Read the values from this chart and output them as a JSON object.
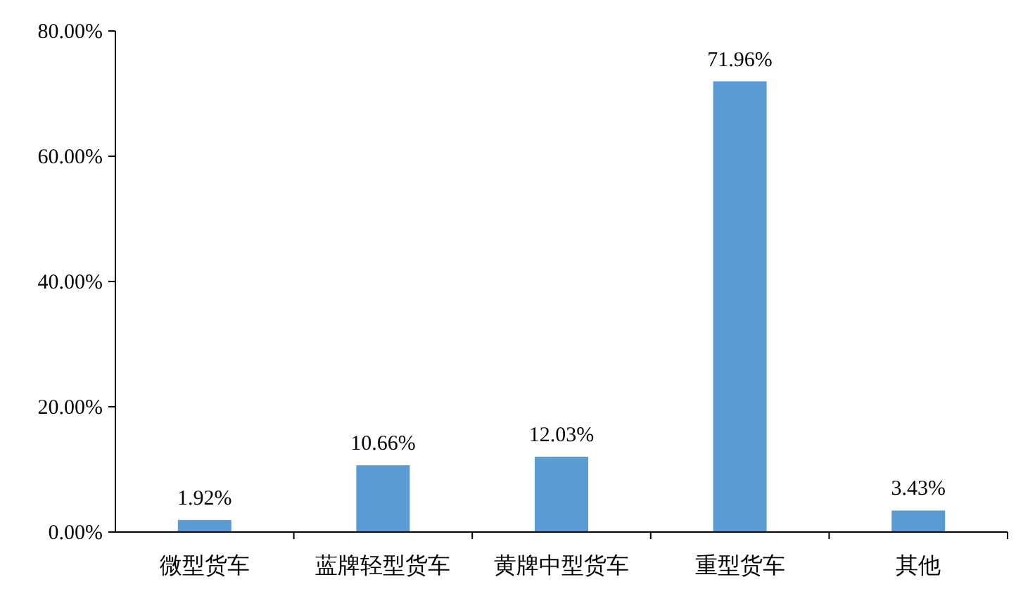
{
  "chart_data": {
    "type": "bar",
    "categories": [
      "微型货车",
      "蓝牌轻型货车",
      "黄牌中型货车",
      "重型货车",
      "其他"
    ],
    "values": [
      1.92,
      10.66,
      12.03,
      71.96,
      3.43
    ],
    "value_labels": [
      "1.92%",
      "10.66%",
      "12.03%",
      "71.96%",
      "3.43%"
    ],
    "color": "#5b9bd5",
    "ylim": [
      0,
      80
    ],
    "yticks": [
      {
        "value": 0,
        "label": "0.00%"
      },
      {
        "value": 20,
        "label": "20.00%"
      },
      {
        "value": 40,
        "label": "40.00%"
      },
      {
        "value": 60,
        "label": "60.00%"
      },
      {
        "value": 80,
        "label": "80.00%"
      }
    ]
  }
}
